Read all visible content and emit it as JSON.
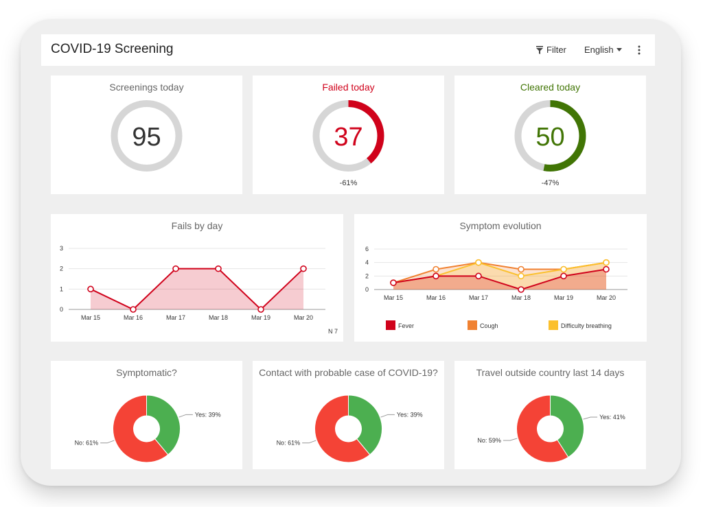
{
  "app": {
    "title": "COVID-19 Screening"
  },
  "toolbar": {
    "filter_label": "Filter",
    "language_label": "English",
    "filter_icon": "funnel-icon",
    "more_icon": "more-vert-icon"
  },
  "colors": {
    "fail": "#d0021b",
    "clear": "#417505",
    "ring_bg": "#d6d6d6",
    "fever": "#d0021b",
    "cough": "#f08131",
    "breathing": "#fbc02d",
    "yes": "#4caf50",
    "no": "#f44336"
  },
  "kpis": [
    {
      "title": "Screenings today",
      "value": "95",
      "fraction": 0,
      "delta": "",
      "color": "#333333",
      "title_color": "#666666"
    },
    {
      "title": "Failed today",
      "value": "37",
      "fraction": 0.39,
      "delta": "-61%",
      "color": "#d0021b",
      "title_color": "#d0021b"
    },
    {
      "title": "Cleared today",
      "value": "50",
      "fraction": 0.53,
      "delta": "-47%",
      "color": "#417505",
      "title_color": "#417505"
    }
  ],
  "fails_by_day": {
    "title": "Fails by day",
    "note": "N 7",
    "chart_data": {
      "type": "area",
      "categories": [
        "Mar 15",
        "Mar 16",
        "Mar 17",
        "Mar 18",
        "Mar 19",
        "Mar 20"
      ],
      "values": [
        1,
        0,
        2,
        2,
        0,
        2
      ],
      "yticks": [
        "0",
        "1",
        "2",
        "3"
      ],
      "ylim": [
        0,
        3
      ],
      "grid": true
    }
  },
  "symptom_evolution": {
    "title": "Symptom evolution",
    "chart_data": {
      "type": "area",
      "categories": [
        "Mar 15",
        "Mar 16",
        "Mar 17",
        "Mar 18",
        "Mar 19",
        "Mar 20"
      ],
      "yticks": [
        "0",
        "2",
        "4",
        "6"
      ],
      "ylim": [
        0,
        6
      ],
      "grid": true,
      "legend_position": "bottom",
      "series": [
        {
          "name": "Fever",
          "values": [
            1,
            2,
            2,
            0,
            2,
            3
          ]
        },
        {
          "name": "Cough",
          "values": [
            1,
            3,
            4,
            3,
            3,
            4
          ]
        },
        {
          "name": "Difficulty breathing",
          "values": [
            1,
            2,
            4,
            2,
            3,
            4
          ]
        }
      ]
    }
  },
  "donuts": [
    {
      "title": "Symptomatic?",
      "chart_data": {
        "type": "pie",
        "labels": [
          "Yes",
          "No"
        ],
        "values": [
          39,
          61
        ],
        "data_labels": [
          "Yes: 39%",
          "No: 61%"
        ]
      }
    },
    {
      "title": "Contact with probable case of COVID-19?",
      "chart_data": {
        "type": "pie",
        "labels": [
          "Yes",
          "No"
        ],
        "values": [
          39,
          61
        ],
        "data_labels": [
          "Yes: 39%",
          "No: 61%"
        ]
      }
    },
    {
      "title": "Travel outside country last 14 days",
      "chart_data": {
        "type": "pie",
        "labels": [
          "Yes",
          "No"
        ],
        "values": [
          41,
          59
        ],
        "data_labels": [
          "Yes: 41%",
          "No: 59%"
        ]
      }
    }
  ]
}
